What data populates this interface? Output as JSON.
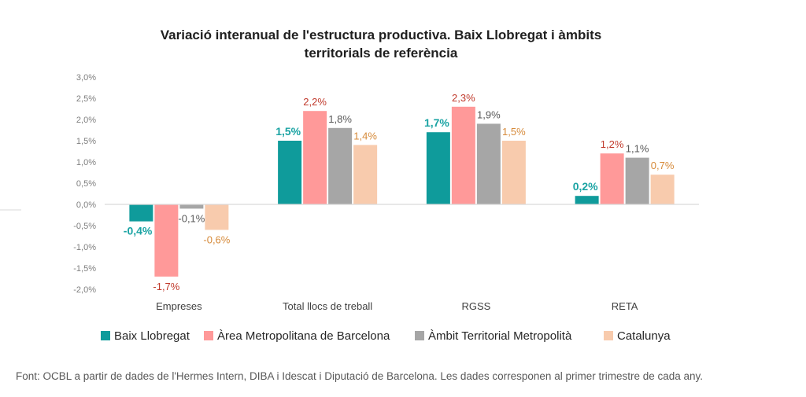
{
  "chart_data": {
    "type": "bar",
    "title": [
      "Variació interanual de l'estructura productiva. Baix Llobregat i àmbits",
      "territorials de referència"
    ],
    "categories": [
      "Empreses",
      "Total llocs de treball",
      "RGSS",
      "RETA"
    ],
    "ylim": [
      -2.0,
      3.0
    ],
    "ytick_step": 0.5,
    "ytick_labels": [
      "-2,0%",
      "-1,5%",
      "-1,0%",
      "-0,5%",
      "0,0%",
      "0,5%",
      "1,0%",
      "1,5%",
      "2,0%",
      "2,5%",
      "3,0%"
    ],
    "grid": false,
    "legend_position": "bottom",
    "series": [
      {
        "name": "Baix Llobregat",
        "color": "#0f9b9b",
        "label_color": "#1aa3a3",
        "values": [
          -0.4,
          1.5,
          1.7,
          0.2
        ],
        "labels": [
          "-0,4%",
          "1,5%",
          "1,7%",
          "0,2%"
        ],
        "bold": true
      },
      {
        "name": "Àrea Metropolitana de Barcelona",
        "color": "#ff9999",
        "label_color": "#c0392b",
        "values": [
          -1.7,
          2.2,
          2.3,
          1.2
        ],
        "labels": [
          "-1,7%",
          "2,2%",
          "2,3%",
          "1,2%"
        ],
        "bold": false
      },
      {
        "name": "Àmbit Territorial Metropolità",
        "color": "#a6a6a6",
        "label_color": "#595959",
        "values": [
          -0.1,
          1.8,
          1.9,
          1.1
        ],
        "labels": [
          "-0,1%",
          "1,8%",
          "1,9%",
          "1,1%"
        ],
        "bold": false
      },
      {
        "name": "Catalunya",
        "color": "#f8cbad",
        "label_color": "#d68a3a",
        "values": [
          -0.6,
          1.4,
          1.5,
          0.7
        ],
        "labels": [
          "-0,6%",
          "1,4%",
          "1,5%",
          "0,7%"
        ],
        "bold": false
      }
    ]
  },
  "source": "Font: OCBL a partir de dades de l'Hermes Intern, DIBA i Idescat i Diputació de Barcelona. Les dades corresponen al primer trimestre de cada any."
}
